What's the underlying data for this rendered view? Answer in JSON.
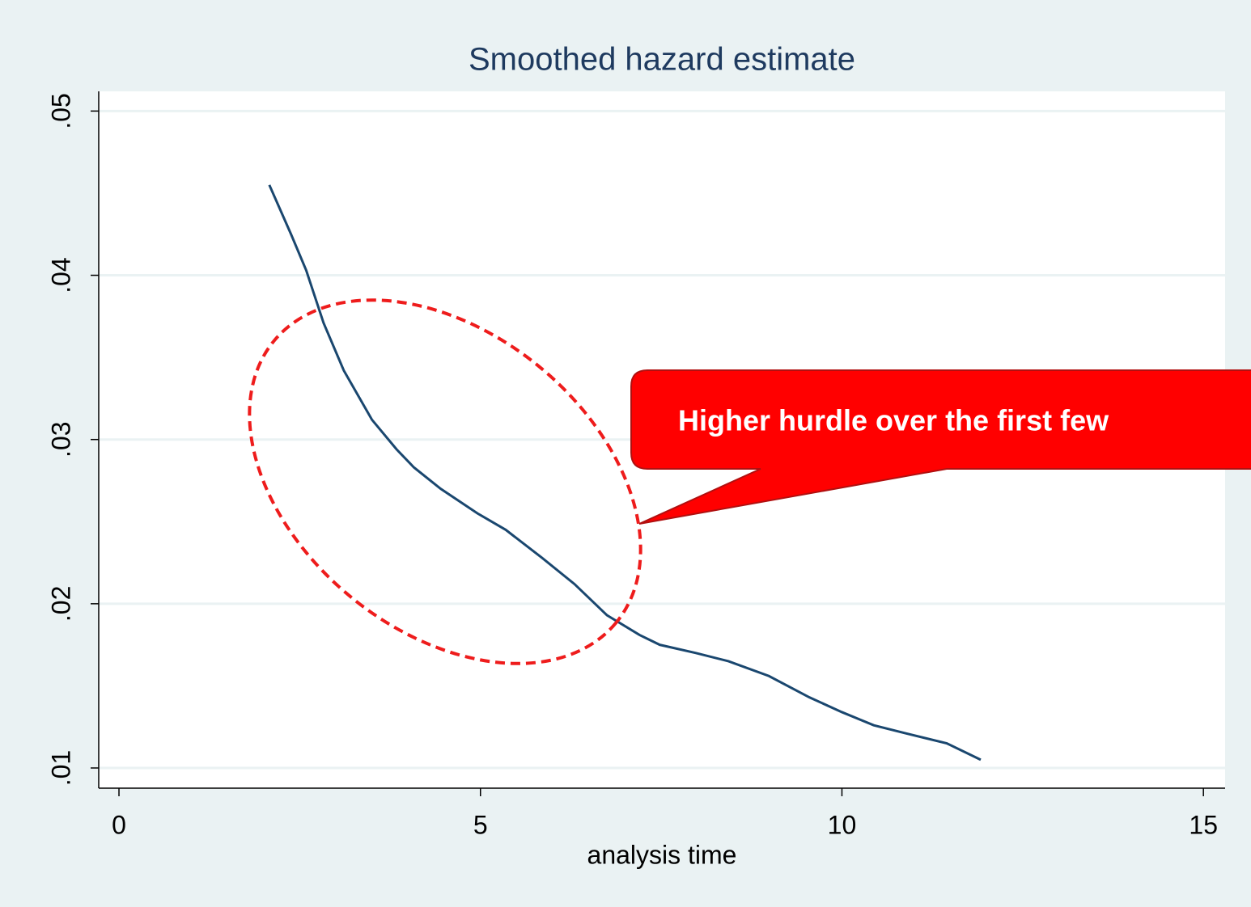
{
  "chart_data": {
    "type": "line",
    "title": "Smoothed hazard estimate",
    "xlabel": "analysis time",
    "annotation": "Higher hurdle over the first few",
    "x": [
      2.08,
      2.38,
      2.59,
      2.83,
      3.11,
      3.5,
      3.84,
      4.08,
      4.45,
      4.96,
      5.35,
      5.85,
      6.3,
      6.75,
      7.2,
      7.48,
      7.98,
      8.43,
      8.99,
      9.55,
      10.0,
      10.44,
      10.89,
      11.45,
      11.92
    ],
    "series": [
      {
        "color": "#1a476f",
        "values": [
          0.0455,
          0.0425,
          0.0403,
          0.0371,
          0.0342,
          0.0312,
          0.0294,
          0.0283,
          0.027,
          0.0255,
          0.0245,
          0.0228,
          0.0212,
          0.0193,
          0.0181,
          0.0175,
          0.017,
          0.0165,
          0.0156,
          0.0143,
          0.0134,
          0.0126,
          0.0121,
          0.0115,
          0.0105
        ]
      }
    ],
    "xlim": [
      -0.28,
      15.3
    ],
    "xticks": [
      0,
      5,
      10,
      15
    ],
    "ylim": [
      0.00877,
      0.0512
    ],
    "yticks": [
      {
        "value": 0.01,
        "label": ".01"
      },
      {
        "value": 0.02,
        "label": ".02"
      },
      {
        "value": 0.03,
        "label": ".03"
      },
      {
        "value": 0.04,
        "label": ".04"
      },
      {
        "value": 0.05,
        "label": ".05"
      }
    ],
    "grid": true
  }
}
